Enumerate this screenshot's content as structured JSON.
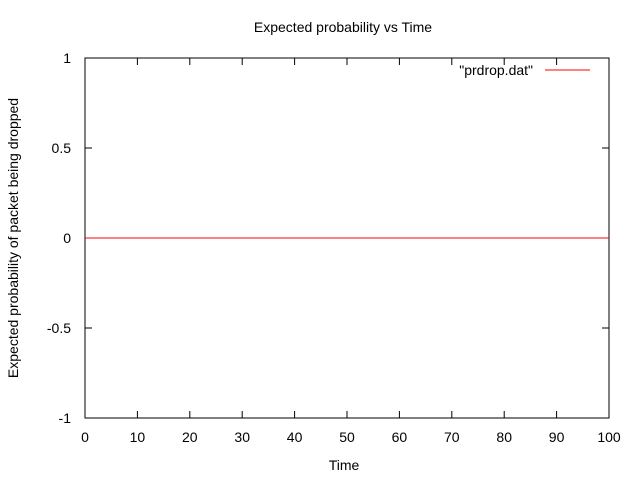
{
  "chart_data": {
    "type": "line",
    "title": "Expected probability vs Time",
    "xlabel": "Time",
    "ylabel": "Expected probability of packet being dropped",
    "xlim": [
      0,
      100
    ],
    "ylim": [
      -1,
      1
    ],
    "xticks": [
      0,
      10,
      20,
      30,
      40,
      50,
      60,
      70,
      80,
      90,
      100
    ],
    "xtick_labels": [
      "0",
      "10",
      "20",
      "30",
      "40",
      "50",
      "60",
      "70",
      "80",
      "90",
      "100"
    ],
    "yticks": [
      -1,
      -0.5,
      0,
      0.5,
      1
    ],
    "ytick_labels": [
      "-1",
      "-0.5",
      "0",
      "0.5",
      "1"
    ],
    "grid": false,
    "legend_position": "top-right",
    "series": [
      {
        "name": "\"prdrop.dat\"",
        "color": "#ff0000",
        "x": [
          0,
          100
        ],
        "y": [
          0,
          0
        ]
      }
    ]
  }
}
